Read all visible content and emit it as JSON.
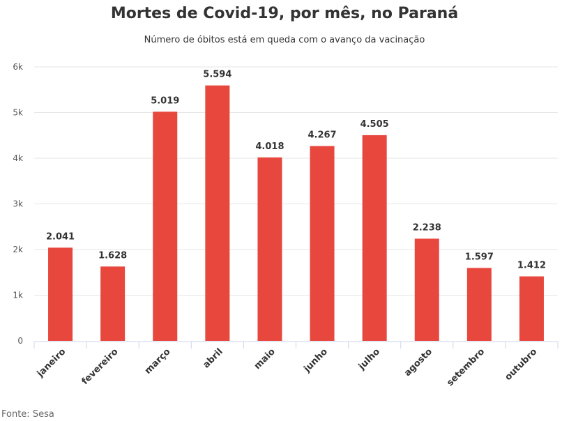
{
  "chart_data": {
    "type": "bar",
    "title": "Mortes de Covid-19, por mês, no Paraná",
    "subtitle": "Número de óbitos está em queda com o avanço da vacinação",
    "categories": [
      "janeiro",
      "fevereiro",
      "março",
      "abril",
      "maio",
      "junho",
      "julho",
      "agosto",
      "setembro",
      "outubro"
    ],
    "values": [
      2041,
      1628,
      5019,
      5594,
      4018,
      4267,
      4505,
      2238,
      1597,
      1412
    ],
    "data_labels": [
      "2.041",
      "1.628",
      "5.019",
      "5.594",
      "4.018",
      "4.267",
      "4.505",
      "2.238",
      "1.597",
      "1.412"
    ],
    "yticks": [
      0,
      1000,
      2000,
      3000,
      4000,
      5000,
      6000
    ],
    "ytick_labels": [
      "0",
      "1k",
      "2k",
      "3k",
      "4k",
      "5k",
      "6k"
    ],
    "ylim": [
      0,
      6000
    ],
    "xlabel": "",
    "ylabel": "",
    "grid": true,
    "bar_color": "#e8473d",
    "source": "Fonte: Sesa"
  }
}
